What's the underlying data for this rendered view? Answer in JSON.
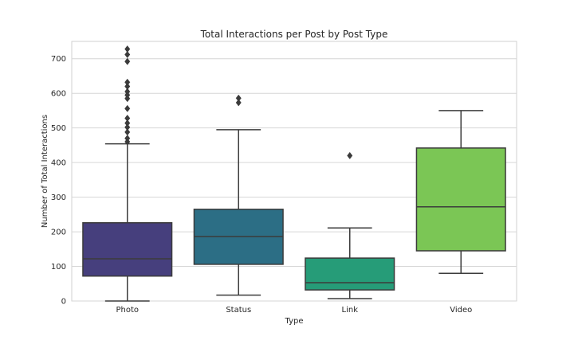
{
  "chart_data": {
    "type": "box",
    "title": "Total Interactions per Post by Post Type",
    "xlabel": "Type",
    "ylabel": "Number of Total Interactions",
    "ylim": [
      0,
      750
    ],
    "yticks": [
      0,
      100,
      200,
      300,
      400,
      500,
      600,
      700
    ],
    "grid": true,
    "categories": [
      "Photo",
      "Status",
      "Link",
      "Video"
    ],
    "boxes": [
      {
        "category": "Photo",
        "whisker_low": 0,
        "q1": 72,
        "median": 122,
        "q3": 226,
        "whisker_high": 454,
        "outliers": [
          460,
          470,
          488,
          502,
          514,
          528,
          556,
          585,
          595,
          605,
          620,
          632,
          692,
          712,
          728
        ],
        "color": "#463f7d"
      },
      {
        "category": "Status",
        "whisker_low": 17,
        "q1": 106,
        "median": 186,
        "q3": 265,
        "whisker_high": 495,
        "outliers": [
          573,
          586
        ],
        "color": "#2c6e85"
      },
      {
        "category": "Link",
        "whisker_low": 7,
        "q1": 32,
        "median": 53,
        "q3": 124,
        "whisker_high": 211,
        "outliers": [
          420
        ],
        "color": "#269c78"
      },
      {
        "category": "Video",
        "whisker_low": 80,
        "q1": 145,
        "median": 272,
        "q3": 442,
        "whisker_high": 550,
        "outliers": [],
        "color": "#7bc655"
      }
    ]
  }
}
